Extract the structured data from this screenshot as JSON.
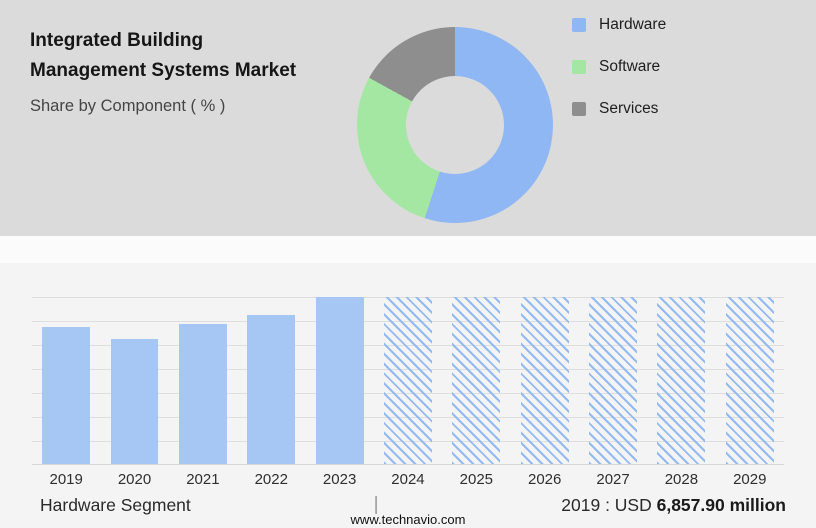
{
  "header": {
    "title_line1": "Integrated Building",
    "title_line2": "Management Systems Market",
    "subtitle": "Share by Component ( % )"
  },
  "legend": {
    "items": [
      {
        "label": "Hardware",
        "color": "#8FB7F3"
      },
      {
        "label": "Software",
        "color": "#A4E7A2"
      },
      {
        "label": "Services",
        "color": "#8E8E8E"
      }
    ]
  },
  "footer": {
    "segment_label": "Hardware Segment",
    "separator": "|",
    "value_prefix": "2019 : USD ",
    "value_bold": "6,857.90 million",
    "website": "www.technavio.com"
  },
  "colors": {
    "top_background": "#DBDBDB",
    "band_background": "#FBFBFB",
    "bottom_background": "#F4F4F4",
    "gridline": "#DEDEDE"
  },
  "chart_data": [
    {
      "type": "pie",
      "donut": true,
      "title": "Share by Component ( % )",
      "labels": [
        "Hardware",
        "Software",
        "Services"
      ],
      "values_est_pct": [
        55,
        28,
        17
      ],
      "colors": [
        "#8FB7F3",
        "#A4E7A2",
        "#8E8E8E"
      ],
      "legend_position": "right",
      "start_angle_deg": 0,
      "note": "Slice percentages are not labeled in the image; values estimated from arc angles"
    },
    {
      "type": "bar",
      "categories": [
        "2019",
        "2020",
        "2021",
        "2022",
        "2023",
        "2024",
        "2025",
        "2026",
        "2027",
        "2028",
        "2029"
      ],
      "values_pct_of_plot_height": [
        82,
        75,
        84,
        89,
        100,
        100,
        100,
        100,
        100,
        100,
        100
      ],
      "forecast": [
        false,
        false,
        false,
        false,
        false,
        true,
        true,
        true,
        true,
        true,
        true
      ],
      "bar_color": "#A6C6F3",
      "hatch_color": "#93BBF1",
      "known_value_label": "2019 : USD 6,857.90 million",
      "xlabel": "",
      "ylabel": "",
      "y_axis_labels_visible": false,
      "grid": true,
      "note": "2024-2029 are diagonal-hatched full-height forecast placeholders; y-axis has no tick labels"
    }
  ]
}
